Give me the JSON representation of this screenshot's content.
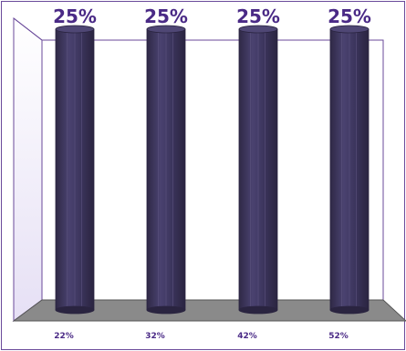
{
  "chart_data": {
    "type": "bar",
    "categories": [
      "22%",
      "32%",
      "42%",
      "52%"
    ],
    "values": [
      25,
      25,
      25,
      25
    ],
    "value_labels": [
      "25%",
      "25%",
      "25%",
      "25%"
    ],
    "bar_style": "3d-cylinder",
    "ylim": [
      0,
      25
    ],
    "grid": false,
    "legend": "none"
  },
  "colors": {
    "bar_body": "#40385e",
    "bar_highlight": "#5e5682",
    "bar_edge": "#2a2440",
    "value_label": "#4a2a86",
    "category_label": "#4a2a86",
    "frame": "#6a4a9a",
    "floor": "#8a8a8a",
    "left_shade": "#e9e3f7"
  }
}
